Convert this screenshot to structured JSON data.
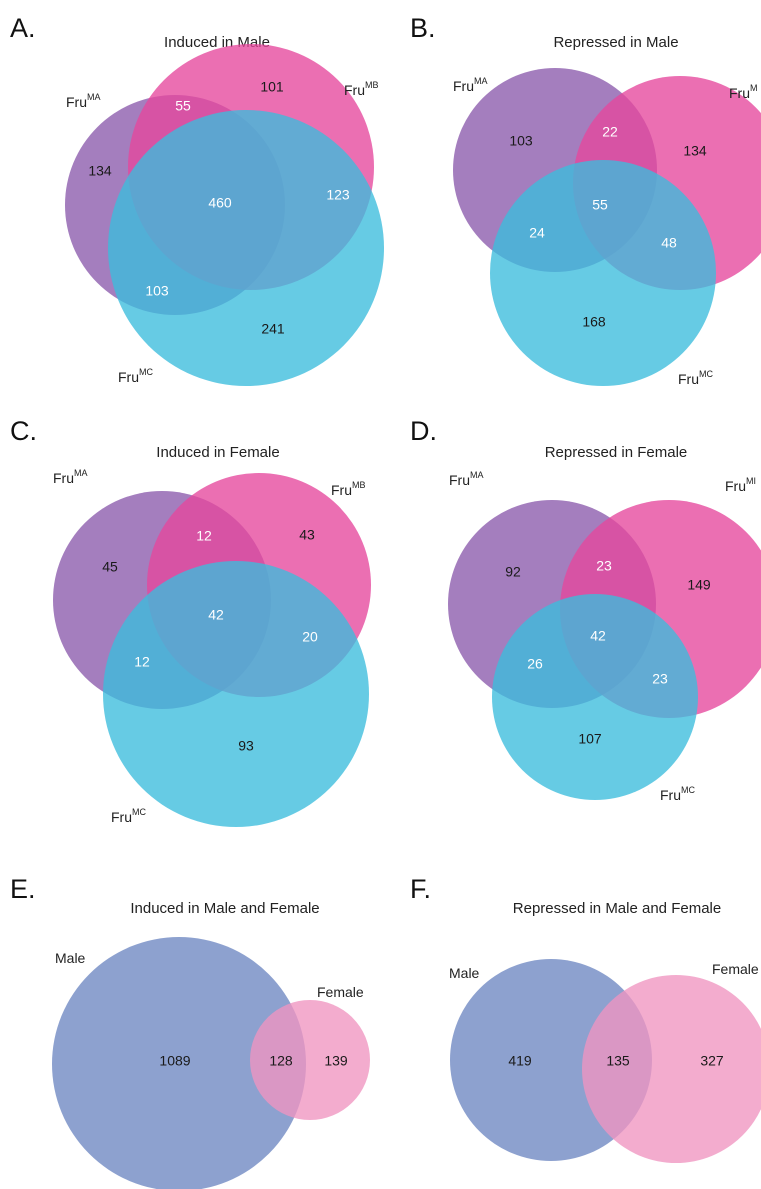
{
  "colors": {
    "fru_ma": "#8a5aac",
    "fru_mb": "#e6479c",
    "fru_mc": "#3bbcdc",
    "male": "#6d86c1",
    "female": "#f095c0",
    "count_dark": "#1a1a1a",
    "count_light": "#ffffff"
  },
  "panels": [
    {
      "letter": "A.",
      "title": "Induced in Male",
      "sets": [
        {
          "label": "Fru",
          "sup": "MA",
          "color_key": "fru_ma"
        },
        {
          "label": "Fru",
          "sup": "MB",
          "color_key": "fru_mb"
        },
        {
          "label": "Fru",
          "sup": "MC",
          "color_key": "fru_mc"
        }
      ],
      "counts": {
        "a_only": "134",
        "b_only": "101",
        "c_only": "241",
        "ab": "55",
        "ac": "103",
        "bc": "123",
        "abc": "460"
      }
    },
    {
      "letter": "B.",
      "title": "Repressed in Male",
      "sets": [
        {
          "label": "Fru",
          "sup": "MA",
          "color_key": "fru_ma"
        },
        {
          "label": "Fru",
          "sup": "M",
          "color_key": "fru_mb"
        },
        {
          "label": "Fru",
          "sup": "MC",
          "color_key": "fru_mc"
        }
      ],
      "counts": {
        "a_only": "103",
        "b_only": "134",
        "c_only": "168",
        "ab": "22",
        "ac": "24",
        "bc": "48",
        "abc": "55"
      }
    },
    {
      "letter": "C.",
      "title": "Induced in Female",
      "sets": [
        {
          "label": "Fru",
          "sup": "MA",
          "color_key": "fru_ma"
        },
        {
          "label": "Fru",
          "sup": "MB",
          "color_key": "fru_mb"
        },
        {
          "label": "Fru",
          "sup": "MC",
          "color_key": "fru_mc"
        }
      ],
      "counts": {
        "a_only": "45",
        "b_only": "43",
        "c_only": "93",
        "ab": "12",
        "ac": "12",
        "bc": "20",
        "abc": "42"
      }
    },
    {
      "letter": "D.",
      "title": "Repressed in Female",
      "sets": [
        {
          "label": "Fru",
          "sup": "MA",
          "color_key": "fru_ma"
        },
        {
          "label": "Fru",
          "sup": "MI",
          "color_key": "fru_mb"
        },
        {
          "label": "Fru",
          "sup": "MC",
          "color_key": "fru_mc"
        }
      ],
      "counts": {
        "a_only": "92",
        "b_only": "149",
        "c_only": "107",
        "ab": "23",
        "ac": "26",
        "bc": "23",
        "abc": "42"
      }
    },
    {
      "letter": "E.",
      "title": "Induced in Male and Female",
      "sets": [
        {
          "label": "Male",
          "color_key": "male"
        },
        {
          "label": "Female",
          "color_key": "female"
        }
      ],
      "counts": {
        "a_only": "1089",
        "ab": "128",
        "b_only": "139"
      }
    },
    {
      "letter": "F.",
      "title": "Repressed in  Male and Female",
      "sets": [
        {
          "label": "Male",
          "color_key": "male"
        },
        {
          "label": "Female",
          "color_key": "female"
        }
      ],
      "counts": {
        "a_only": "419",
        "ab": "135",
        "b_only": "327"
      }
    }
  ]
}
